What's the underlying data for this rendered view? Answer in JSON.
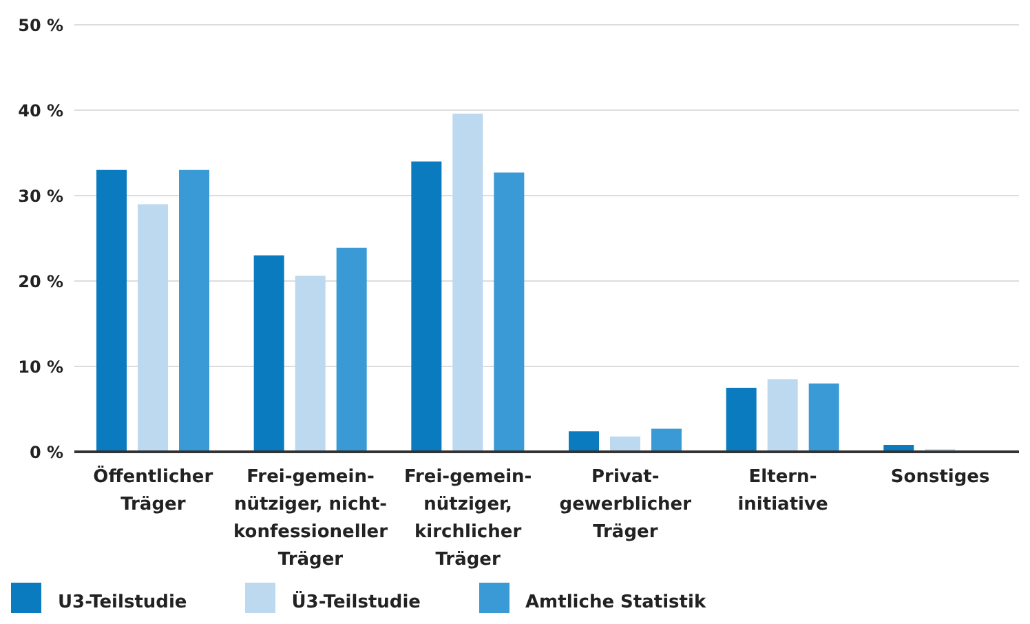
{
  "chart_data": {
    "type": "bar",
    "categories": [
      "Öffentlicher\nTräger",
      "Frei-gemein-\nnütziger, nicht-\nkonfessioneller\nTräger",
      "Frei-gemein-\nnütziger,\nkirchlicher\nTräger",
      "Privat-\ngewerblicher\nTräger",
      "Eltern-\ninitiative",
      "Sonstiges"
    ],
    "series": [
      {
        "name": "U3-Teilstudie",
        "color": "#0a7bbf",
        "values": [
          33,
          23,
          34,
          2.4,
          7.5,
          0.8
        ]
      },
      {
        "name": "Ü3-Teilstudie",
        "color": "#bcd9ef",
        "values": [
          29,
          20.6,
          39.6,
          1.8,
          8.5,
          0.3
        ]
      },
      {
        "name": "Amtliche Statistik",
        "color": "#3a9ad6",
        "values": [
          33,
          23.9,
          32.7,
          2.7,
          8,
          0
        ]
      }
    ],
    "ylim": [
      0,
      50
    ],
    "yticks": [
      {
        "value": 0,
        "label": "0 %"
      },
      {
        "value": 10,
        "label": "10 %"
      },
      {
        "value": 20,
        "label": "20 %"
      },
      {
        "value": 30,
        "label": "30 %"
      },
      {
        "value": 40,
        "label": "40 %"
      },
      {
        "value": 50,
        "label": "50 %"
      }
    ],
    "grid": "y",
    "legend": "bottom left"
  }
}
